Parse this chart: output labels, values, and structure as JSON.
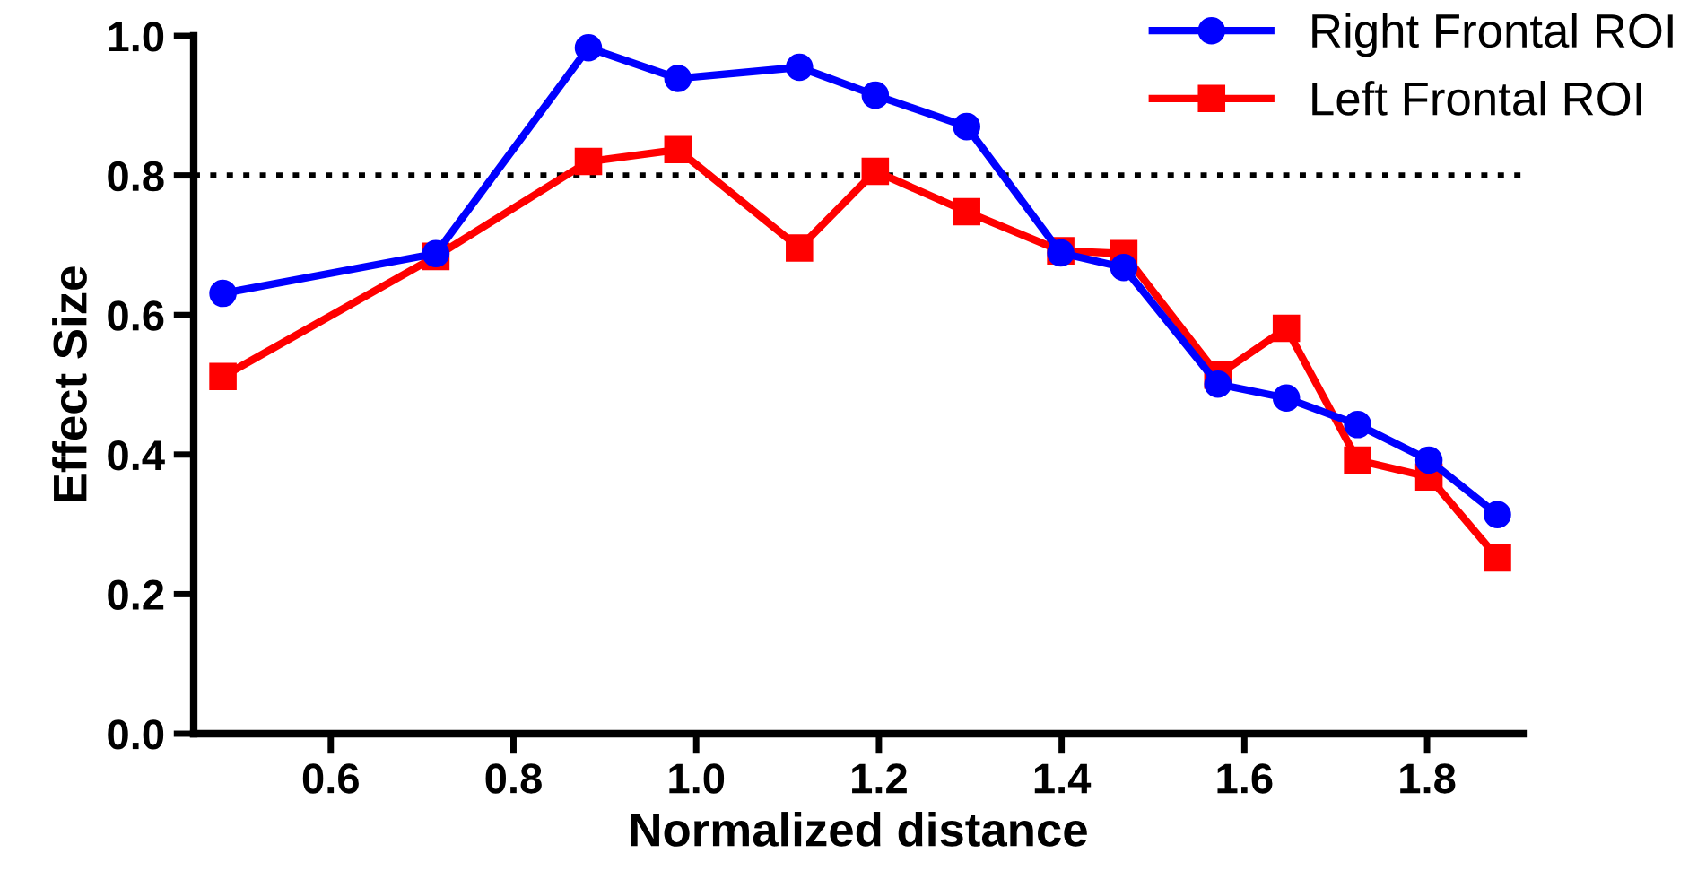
{
  "chart_data": {
    "type": "line",
    "xlabel": "Normalized distance",
    "ylabel": "Effect Size",
    "x": [
      0.482,
      0.715,
      0.882,
      0.98,
      1.113,
      1.196,
      1.296,
      1.399,
      1.468,
      1.571,
      1.646,
      1.724,
      1.802,
      1.877
    ],
    "series": [
      {
        "name": "Right Frontal ROI",
        "color": "#0000ff",
        "marker": "circle",
        "values": [
          0.631,
          0.688,
          0.983,
          0.939,
          0.955,
          0.915,
          0.87,
          0.689,
          0.668,
          0.501,
          0.481,
          0.443,
          0.392,
          0.314
        ]
      },
      {
        "name": "Left Frontal ROI",
        "color": "#ff0000",
        "marker": "square",
        "values": [
          0.512,
          0.684,
          0.82,
          0.837,
          0.696,
          0.806,
          0.748,
          0.692,
          0.688,
          0.514,
          0.581,
          0.392,
          0.368,
          0.252
        ]
      }
    ],
    "xlim": [
      0.45,
      1.905
    ],
    "xticks": [
      {
        "value": 0.6,
        "label": "0.6"
      },
      {
        "value": 0.8,
        "label": "0.8"
      },
      {
        "value": 1.0,
        "label": "1.0"
      },
      {
        "value": 1.2,
        "label": "1.2"
      },
      {
        "value": 1.4,
        "label": "1.4"
      },
      {
        "value": 1.6,
        "label": "1.6"
      },
      {
        "value": 1.8,
        "label": "1.8"
      }
    ],
    "ylim": [
      0,
      1.0
    ],
    "yticks": [
      {
        "value": 0,
        "label": "0.0"
      },
      {
        "value": 0.2,
        "label": "0.2"
      },
      {
        "value": 0.4,
        "label": "0.4"
      },
      {
        "value": 0.6,
        "label": "0.6"
      },
      {
        "value": 0.8,
        "label": "0.8"
      },
      {
        "value": 1.0,
        "label": "1.0"
      }
    ],
    "ref_lines": [
      {
        "axis": "y",
        "value": 0.8,
        "color": "#000000",
        "line_style": "dotted"
      }
    ],
    "line_style": "solid",
    "grid": false,
    "legend": "top right"
  }
}
